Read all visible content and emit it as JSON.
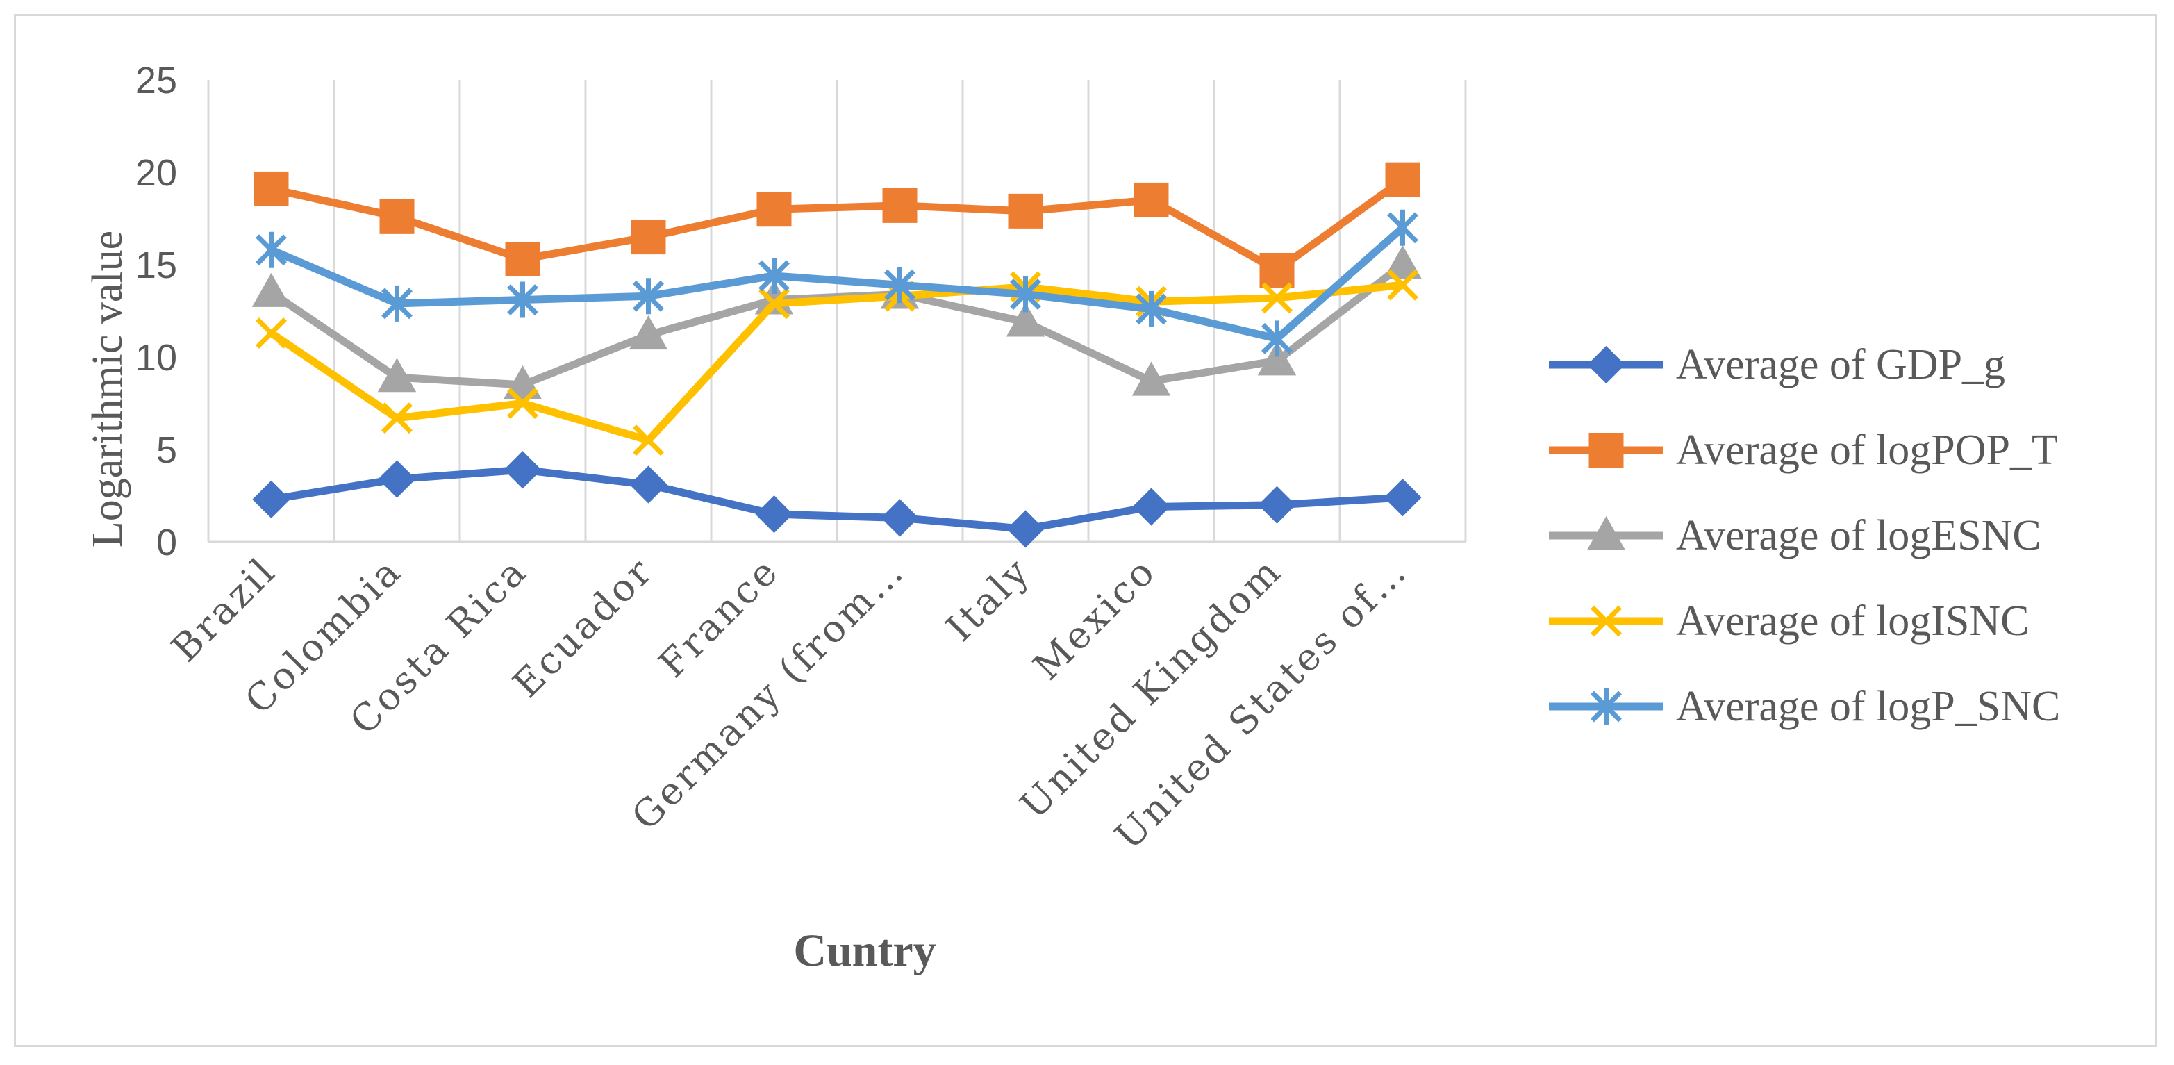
{
  "chart_data": {
    "type": "line",
    "xlabel": "Cuntry",
    "ylabel": "Logarithmic value",
    "ylim": [
      0,
      25
    ],
    "yticks": [
      0,
      5,
      10,
      15,
      20,
      25
    ],
    "grid": "vertical",
    "legend_position": "right",
    "categories": [
      "Brazil",
      "Colombia",
      "Costa Rica",
      "Ecuador",
      "France",
      "Germany (from…",
      "Italy",
      "Mexico",
      "United Kingdom",
      "United States of…"
    ],
    "series": [
      {
        "name": "Average of GDP_g",
        "color": "#4472c4",
        "marker": "diamond",
        "values": [
          2.3,
          3.4,
          3.9,
          3.1,
          1.5,
          1.3,
          0.7,
          1.9,
          2.0,
          2.4
        ]
      },
      {
        "name": "Average of logPOP_T",
        "color": "#ed7d31",
        "marker": "square",
        "values": [
          19.1,
          17.6,
          15.3,
          16.5,
          18.0,
          18.2,
          17.9,
          18.5,
          14.7,
          19.6
        ]
      },
      {
        "name": "Average of logESNC",
        "color": "#a5a5a5",
        "marker": "triangle",
        "values": [
          13.5,
          8.9,
          8.5,
          11.2,
          13.1,
          13.4,
          11.9,
          8.7,
          9.8,
          15.0
        ]
      },
      {
        "name": "Average of logISNC",
        "color": "#ffc000",
        "marker": "x",
        "values": [
          11.3,
          6.7,
          7.5,
          5.5,
          12.9,
          13.3,
          13.8,
          13.0,
          13.2,
          13.9
        ]
      },
      {
        "name": "Average of logP_SNC",
        "color": "#5b9bd5",
        "marker": "star",
        "values": [
          15.8,
          12.9,
          13.1,
          13.3,
          14.4,
          13.9,
          13.4,
          12.6,
          11.0,
          17.0
        ]
      }
    ]
  }
}
